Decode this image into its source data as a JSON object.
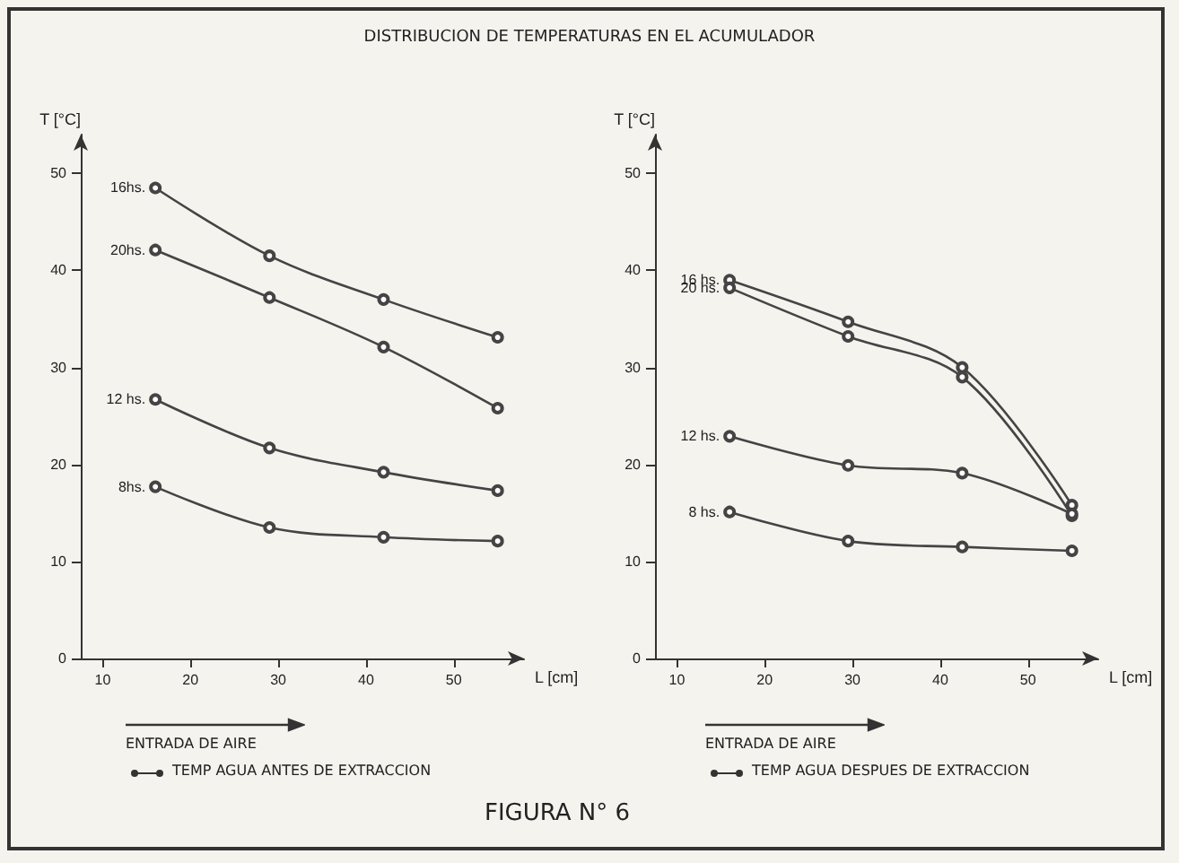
{
  "chart_data": [
    {
      "type": "line",
      "title": "DISTRIBUCION DE TEMPERATURAS EN EL ACUMULADOR",
      "xlabel": "L [cm]",
      "ylabel": "T [°C]",
      "x": [
        16,
        29,
        42,
        55
      ],
      "xlim": [
        7.5,
        58
      ],
      "xticks": [
        10,
        20,
        30,
        40,
        50
      ],
      "ylim": [
        0,
        54
      ],
      "yticks": [
        0,
        10,
        20,
        30,
        40,
        50
      ],
      "grid": false,
      "legend": false,
      "marker": "circle",
      "line_style": "solid",
      "annotations": [
        "ENTRADA DE AIRE",
        "TEMP AGUA ANTES DE EXTRACCION"
      ],
      "series": [
        {
          "name": "16hs.",
          "color": "#444444",
          "values": [
            48.5,
            41.5,
            37,
            33.1
          ]
        },
        {
          "name": "20hs.",
          "color": "#444444",
          "values": [
            42.1,
            37.2,
            32.1,
            25.8
          ]
        },
        {
          "name": "12 hs.",
          "color": "#444444",
          "values": [
            26.7,
            21.7,
            19.2,
            17.3
          ]
        },
        {
          "name": "8hs.",
          "color": "#444444",
          "values": [
            17.7,
            13.5,
            12.5,
            12.1
          ]
        }
      ]
    },
    {
      "type": "line",
      "xlabel": "L [cm]",
      "ylabel": "T [°C]",
      "x": [
        16,
        29.5,
        42.5,
        55
      ],
      "xlim": [
        7.5,
        58
      ],
      "xticks": [
        10,
        20,
        30,
        40,
        50
      ],
      "ylim": [
        0,
        54
      ],
      "yticks": [
        0,
        10,
        20,
        30,
        40,
        50
      ],
      "grid": false,
      "legend": false,
      "marker": "circle",
      "line_style": "solid",
      "annotations": [
        "ENTRADA DE AIRE",
        "TEMP AGUA DESPUES DE EXTRACCION",
        "FIGURA N° 6"
      ],
      "series": [
        {
          "name": "16 hs.",
          "color": "#444444",
          "values": [
            39,
            34.7,
            30,
            15.8
          ]
        },
        {
          "name": "20 hs.",
          "color": "#444444",
          "values": [
            38.2,
            33.2,
            29,
            14.7
          ]
        },
        {
          "name": "12 hs.",
          "color": "#444444",
          "values": [
            22.9,
            19.9,
            19.1,
            14.9
          ]
        },
        {
          "name": "8 hs.",
          "color": "#444444",
          "values": [
            15.1,
            12.1,
            11.5,
            11.1
          ]
        }
      ]
    }
  ]
}
